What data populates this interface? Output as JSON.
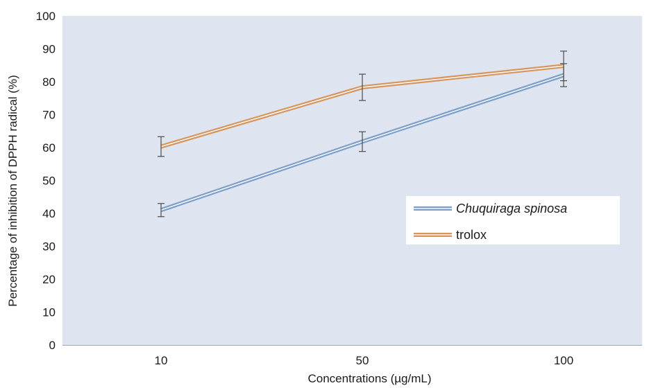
{
  "chart_data": {
    "type": "line",
    "categories": [
      "10",
      "50",
      "100"
    ],
    "series": [
      {
        "name": "Chuquiraga spinosa",
        "values": [
          41,
          61.8,
          82
        ],
        "error": [
          2,
          3,
          3.5
        ],
        "color": "#7b9fc8"
      },
      {
        "name": "trolox",
        "values": [
          60.3,
          78.3,
          84.8
        ],
        "error": [
          3,
          4,
          4.5
        ],
        "color": "#d8955a"
      }
    ],
    "xlabel": "Concentrations (µg/mL)",
    "ylabel": "Percentage of inhibition of DPPH radical (%)",
    "ylim": [
      0,
      100
    ],
    "yticks": [
      "0",
      "10",
      "20",
      "30",
      "40",
      "50",
      "60",
      "70",
      "80",
      "90",
      "100"
    ],
    "grid": false,
    "legend": "right",
    "plot_background": "#dfe5f0"
  }
}
